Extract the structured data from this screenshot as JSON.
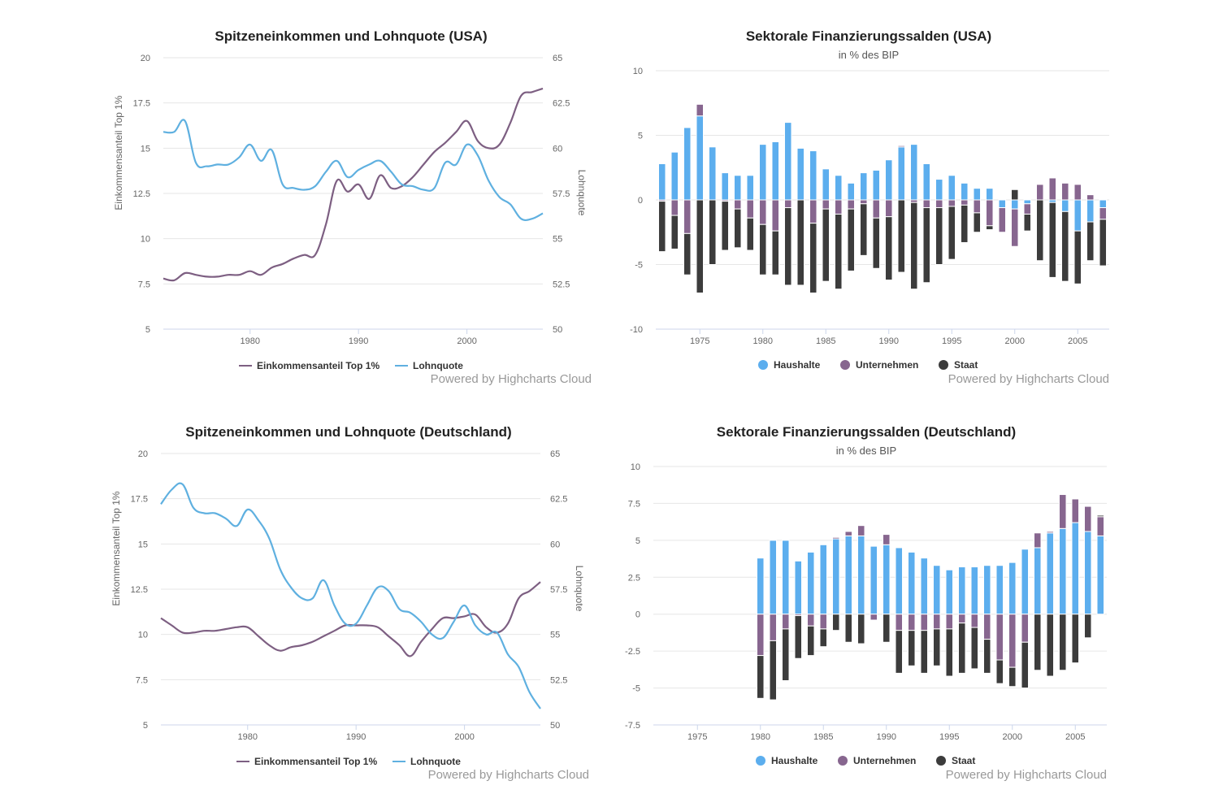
{
  "colors": {
    "top1": "#7d5f82",
    "lohnquote": "#5fb0e0",
    "haushalte": "#5caeee",
    "unternehmen": "#87668f",
    "staat": "#3c3c3c"
  },
  "credit": "Powered by Highcharts Cloud",
  "chart_data": [
    {
      "id": "usa-line",
      "type": "line",
      "title": "Spitzeneinkommen und Lohnquote (USA)",
      "subtitle": "",
      "xlabel": "",
      "ylabel": "Einkommensanteil Top 1%",
      "ylabel_right": "Lohnquote",
      "xlim": [
        1972,
        2007
      ],
      "xticks": [
        1980,
        1990,
        2000
      ],
      "ylim": [
        5,
        20
      ],
      "yticks": [
        5,
        7.5,
        10,
        12.5,
        15,
        17.5,
        20
      ],
      "ylim_right": [
        50,
        65
      ],
      "yticks_right": [
        50,
        52.5,
        55,
        57.5,
        60,
        62.5,
        65
      ],
      "grid": true,
      "legend": "bottom-center",
      "x": [
        1972,
        1973,
        1974,
        1975,
        1976,
        1977,
        1978,
        1979,
        1980,
        1981,
        1982,
        1983,
        1984,
        1985,
        1986,
        1987,
        1988,
        1989,
        1990,
        1991,
        1992,
        1993,
        1994,
        1995,
        1996,
        1997,
        1998,
        1999,
        2000,
        2001,
        2002,
        2003,
        2004,
        2005,
        2006,
        2007
      ],
      "series": [
        {
          "name": "Einkommensanteil Top 1%",
          "axis": "left",
          "color_key": "top1",
          "values": [
            7.8,
            7.7,
            8.1,
            8.0,
            7.9,
            7.9,
            8.0,
            8.0,
            8.2,
            8.0,
            8.4,
            8.6,
            8.9,
            9.1,
            9.1,
            10.8,
            13.2,
            12.6,
            13.0,
            12.2,
            13.5,
            12.8,
            12.9,
            13.4,
            14.1,
            14.8,
            15.3,
            15.9,
            16.5,
            15.4,
            15.0,
            15.2,
            16.4,
            17.9,
            18.1,
            18.3
          ]
        },
        {
          "name": "Lohnquote",
          "axis": "right",
          "color_key": "lohnquote",
          "values": [
            60.9,
            60.9,
            61.5,
            59.2,
            59.0,
            59.1,
            59.1,
            59.5,
            60.2,
            59.3,
            59.9,
            58.0,
            57.8,
            57.7,
            57.9,
            58.7,
            59.3,
            58.4,
            58.8,
            59.1,
            59.3,
            58.7,
            58.0,
            57.9,
            57.7,
            57.8,
            59.2,
            59.1,
            60.2,
            59.6,
            58.2,
            57.3,
            56.9,
            56.1,
            56.1,
            56.4
          ]
        }
      ]
    },
    {
      "id": "usa-bar",
      "type": "bar",
      "stacked": true,
      "title": "Sektorale Finanzierungssalden (USA)",
      "subtitle": "in % des BIP",
      "xlabel": "",
      "ylabel": "",
      "xlim": [
        1971.5,
        2007.5
      ],
      "xticks": [
        1975,
        1980,
        1985,
        1990,
        1995,
        2000,
        2005
      ],
      "ylim": [
        -10,
        10
      ],
      "yticks": [
        -10,
        -5,
        0,
        5,
        10
      ],
      "grid": true,
      "legend": "bottom-center",
      "categories": [
        1972,
        1973,
        1974,
        1975,
        1976,
        1977,
        1978,
        1979,
        1980,
        1981,
        1982,
        1983,
        1984,
        1985,
        1986,
        1987,
        1988,
        1989,
        1990,
        1991,
        1992,
        1993,
        1994,
        1995,
        1996,
        1997,
        1998,
        1999,
        2000,
        2001,
        2002,
        2003,
        2004,
        2005,
        2006,
        2007
      ],
      "series": [
        {
          "name": "Haushalte",
          "color_key": "haushalte",
          "values": [
            2.8,
            3.7,
            5.6,
            6.5,
            4.1,
            2.1,
            1.9,
            1.9,
            4.3,
            4.5,
            6.0,
            4.0,
            3.8,
            2.4,
            1.9,
            1.3,
            2.1,
            2.3,
            3.1,
            4.1,
            4.3,
            2.8,
            1.6,
            1.9,
            1.3,
            0.9,
            0.9,
            -0.6,
            -0.7,
            -0.3,
            0,
            -0.2,
            -0.9,
            -2.4,
            -1.7,
            -0.6
          ]
        },
        {
          "name": "Unternehmen",
          "color_key": "unternehmen",
          "values": [
            -0.1,
            -1.2,
            -2.6,
            0.9,
            0,
            -0.1,
            -0.7,
            -1.4,
            -1.9,
            -2.4,
            -0.6,
            0,
            -1.8,
            -0.7,
            -1.1,
            -0.7,
            -0.3,
            -1.4,
            -1.3,
            0.1,
            -0.2,
            -0.6,
            -0.6,
            -0.5,
            -0.4,
            -1.0,
            -2.0,
            -1.9,
            -2.9,
            -0.8,
            1.2,
            1.7,
            1.3,
            1.2,
            0.4,
            -0.9
          ]
        },
        {
          "name": "Staat",
          "color_key": "staat",
          "values": [
            -3.9,
            -2.6,
            -3.2,
            -7.2,
            -5.0,
            -3.8,
            -3.0,
            -2.5,
            -3.9,
            -3.4,
            -6.0,
            -6.6,
            -5.4,
            -5.6,
            -5.8,
            -4.8,
            -4.0,
            -3.9,
            -4.9,
            -5.6,
            -6.7,
            -5.8,
            -4.4,
            -4.1,
            -2.9,
            -1.5,
            -0.3,
            0,
            0.8,
            -1.3,
            -4.7,
            -5.8,
            -5.4,
            -4.1,
            -3.0,
            -3.6
          ]
        }
      ]
    },
    {
      "id": "de-line",
      "type": "line",
      "title": "Spitzeneinkommen und Lohnquote (Deutschland)",
      "subtitle": "",
      "xlabel": "",
      "ylabel": "Einkommensanteil Top 1%",
      "ylabel_right": "Lohnquote",
      "xlim": [
        1972,
        2007
      ],
      "xticks": [
        1980,
        1990,
        2000
      ],
      "ylim": [
        5,
        20
      ],
      "yticks": [
        5,
        7.5,
        10,
        12.5,
        15,
        17.5,
        20
      ],
      "ylim_right": [
        50,
        65
      ],
      "yticks_right": [
        50,
        52.5,
        55,
        57.5,
        60,
        62.5,
        65
      ],
      "grid": true,
      "legend": "bottom-center",
      "x": [
        1972,
        1973,
        1974,
        1975,
        1976,
        1977,
        1978,
        1979,
        1980,
        1981,
        1982,
        1983,
        1984,
        1985,
        1986,
        1987,
        1988,
        1989,
        1990,
        1991,
        1992,
        1993,
        1994,
        1995,
        1996,
        1997,
        1998,
        1999,
        2000,
        2001,
        2002,
        2003,
        2004,
        2005,
        2006,
        2007
      ],
      "series": [
        {
          "name": "Einkommensanteil Top 1%",
          "axis": "left",
          "color_key": "top1",
          "values": [
            10.9,
            10.5,
            10.1,
            10.1,
            10.2,
            10.2,
            10.3,
            10.4,
            10.4,
            9.9,
            9.4,
            9.1,
            9.3,
            9.4,
            9.6,
            9.9,
            10.2,
            10.5,
            10.5,
            10.5,
            10.4,
            9.9,
            9.4,
            8.8,
            9.6,
            10.3,
            10.9,
            10.9,
            11.0,
            11.1,
            10.4,
            10.1,
            10.6,
            12.0,
            12.4,
            12.9
          ]
        },
        {
          "name": "Lohnquote",
          "axis": "right",
          "color_key": "lohnquote",
          "values": [
            62.2,
            63.0,
            63.3,
            62.0,
            61.7,
            61.7,
            61.4,
            61.0,
            61.9,
            61.3,
            60.3,
            58.6,
            57.6,
            57.0,
            57.0,
            58.0,
            56.6,
            55.6,
            55.6,
            56.6,
            57.6,
            57.4,
            56.4,
            56.2,
            55.7,
            55.0,
            54.8,
            55.7,
            56.6,
            55.5,
            55.0,
            55.1,
            53.9,
            53.2,
            51.8,
            50.9
          ]
        }
      ]
    },
    {
      "id": "de-bar",
      "type": "bar",
      "stacked": true,
      "title": "Sektorale Finanzierungssalden (Deutschland)",
      "subtitle": "in % des BIP",
      "xlabel": "",
      "ylabel": "",
      "xlim": [
        1971.5,
        2007.5
      ],
      "xticks": [
        1975,
        1980,
        1985,
        1990,
        1995,
        2000,
        2005
      ],
      "ylim": [
        -7.5,
        10
      ],
      "yticks": [
        -7.5,
        -5,
        -2.5,
        0,
        2.5,
        5,
        7.5,
        10
      ],
      "grid": true,
      "legend": "bottom-center",
      "categories": [
        1980,
        1981,
        1982,
        1983,
        1984,
        1985,
        1986,
        1987,
        1988,
        1989,
        1990,
        1991,
        1992,
        1993,
        1994,
        1995,
        1996,
        1997,
        1998,
        1999,
        2000,
        2001,
        2002,
        2003,
        2004,
        2005,
        2006,
        2007
      ],
      "series": [
        {
          "name": "Haushalte",
          "color_key": "haushalte",
          "values": [
            3.8,
            5.0,
            5.0,
            3.6,
            4.2,
            4.7,
            5.1,
            5.3,
            5.3,
            4.6,
            4.7,
            4.5,
            4.2,
            3.8,
            3.3,
            3.0,
            3.2,
            3.2,
            3.3,
            3.3,
            3.5,
            4.4,
            4.5,
            5.5,
            5.8,
            6.2,
            5.6,
            5.3
          ]
        },
        {
          "name": "Unternehmen",
          "color_key": "unternehmen",
          "values": [
            -2.8,
            -1.8,
            -1.0,
            -0.1,
            -0.8,
            -1.0,
            0.1,
            0.3,
            0.7,
            -0.4,
            0.7,
            -1.1,
            -1.1,
            -1.1,
            -1.0,
            -1.0,
            -0.6,
            -0.9,
            -1.7,
            -3.1,
            -3.6,
            -1.9,
            1.0,
            0.1,
            2.3,
            1.6,
            1.7,
            1.3
          ]
        },
        {
          "name": "Staat",
          "color_key": "staat",
          "values": [
            -2.9,
            -4.0,
            -3.5,
            -2.9,
            -2.0,
            -1.2,
            -1.1,
            -1.9,
            -2.0,
            0,
            -1.9,
            -2.9,
            -2.4,
            -2.9,
            -2.5,
            -3.2,
            -3.4,
            -2.8,
            -2.3,
            -1.6,
            -1.3,
            -3.1,
            -3.8,
            -4.2,
            -3.8,
            -3.3,
            -1.6,
            0.1
          ]
        }
      ]
    }
  ]
}
